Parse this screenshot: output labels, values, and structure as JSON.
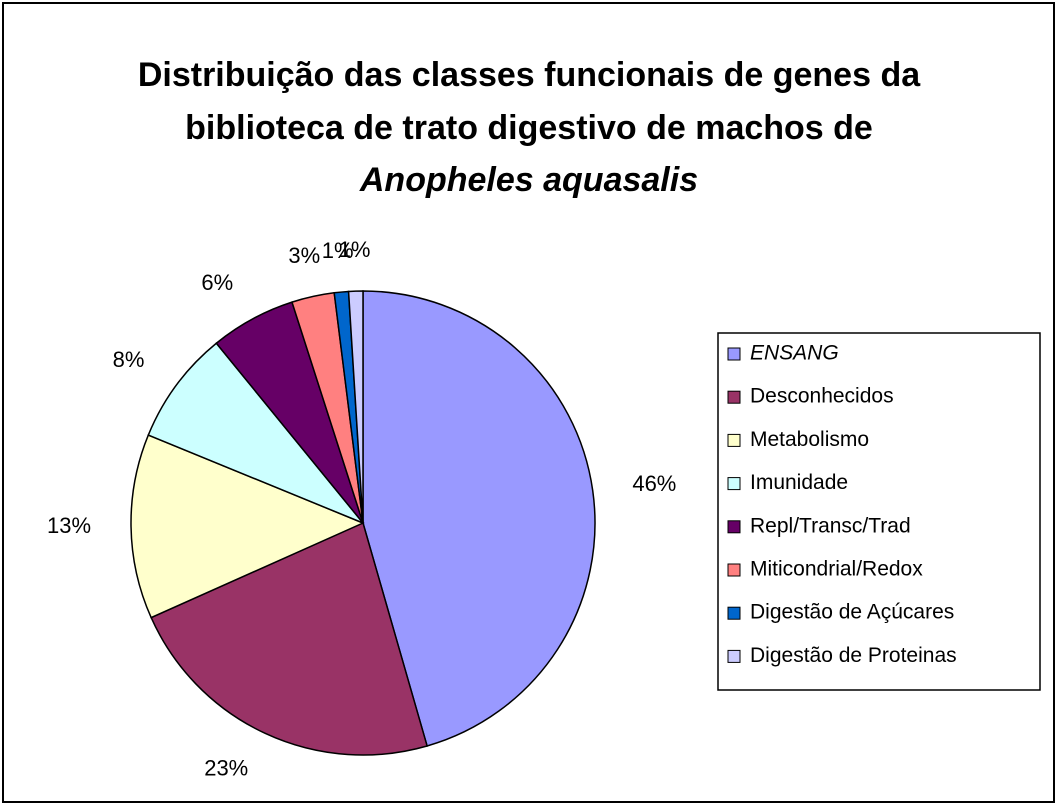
{
  "chart_data": {
    "type": "pie",
    "title": [
      "Distribuição das classes funcionais de genes da",
      "biblioteca de trato digestivo de machos de",
      "Anopheles aquasalis"
    ],
    "categories": [
      "ENSANG",
      "Desconhecidos",
      "Metabolismo",
      "Imunidade",
      "Repl/Transc/Trad",
      "Miticondrial/Redox",
      "Digestão de Açúcares",
      "Digestão de Proteinas"
    ],
    "values": [
      46,
      23,
      13,
      8,
      6,
      3,
      1,
      1
    ],
    "value_labels": [
      "46%",
      "23%",
      "13%",
      "8%",
      "6%",
      "3%",
      "1%",
      "1%"
    ],
    "colors": [
      "#9999ff",
      "#993366",
      "#ffffcc",
      "#ccffff",
      "#660066",
      "#ff8080",
      "#0066cc",
      "#ccccff"
    ],
    "legend": "right"
  }
}
